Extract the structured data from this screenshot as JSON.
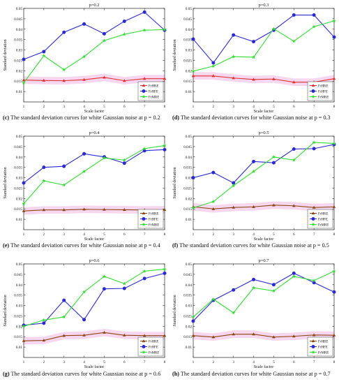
{
  "figure": {
    "panels": [
      {
        "caption_label": "(c)",
        "caption_text": "The standard deviation curves for white Gaussian noise at p = 0.2"
      },
      {
        "caption_label": "(d)",
        "caption_text": "The standard deviation curves for white Gaussian noise at p = 0.3"
      },
      {
        "caption_label": "(e)",
        "caption_text": "The standard deviation curves for white Gaussian noise at p = 0.4"
      },
      {
        "caption_label": "(f)",
        "caption_text": "The standard deviation curves for white Gaussian noise at p = 0.5"
      },
      {
        "caption_label": "(g)",
        "caption_text": "The standard deviation curves for white Gaussian noise at p = 0.6"
      },
      {
        "caption_label": "(h)",
        "caption_text": "The standard deviation curves for white Gaussian noise at p = 0.7"
      }
    ]
  },
  "colors": {
    "frhre": "#e03030",
    "frhfe": "#2a2ad0",
    "frmre": "#33dd33",
    "frhre_alt": "#8b4513",
    "band": "#f7d7ef"
  },
  "chart_data": [
    {
      "type": "line",
      "title": "p=0.2",
      "xlabel": "Scale factor",
      "ylabel": "Standard deviation",
      "x": [
        1,
        2,
        3,
        4,
        5,
        6,
        7,
        8
      ],
      "xlim": [
        1,
        8
      ],
      "ylim": [
        0.005,
        0.05
      ],
      "yticks": [
        "0.01",
        "0.015",
        "0.02",
        "0.025",
        "0.03",
        "0.035",
        "0.04",
        "0.045",
        "0.05"
      ],
      "legend_position": "bottom-right",
      "grid": false,
      "series": [
        {
          "name": "FrHRE",
          "color_key": "frhre",
          "marker": "triangle",
          "values": [
            0.0155,
            0.0153,
            0.0152,
            0.0157,
            0.0168,
            0.0152,
            0.0162,
            0.0162
          ]
        },
        {
          "name": "FrHFE",
          "color_key": "frhfe",
          "marker": "circle",
          "values": [
            0.0255,
            0.0292,
            0.0385,
            0.0425,
            0.0378,
            0.0438,
            0.0482,
            0.0395
          ]
        },
        {
          "name": "FrMRE",
          "color_key": "frmre",
          "marker": "star",
          "values": [
            0.0142,
            0.0272,
            0.0205,
            0.0268,
            0.0345,
            0.0375,
            0.0395,
            0.0398
          ]
        }
      ]
    },
    {
      "type": "line",
      "title": "p=0.3",
      "xlabel": "Scale factor",
      "ylabel": "Standard deviation",
      "x": [
        1,
        2,
        3,
        4,
        5,
        6,
        7,
        8
      ],
      "xlim": [
        1,
        8
      ],
      "ylim": [
        0.005,
        0.05
      ],
      "yticks": [
        "0.01",
        "0.015",
        "0.02",
        "0.025",
        "0.03",
        "0.035",
        "0.04",
        "0.045",
        "0.05"
      ],
      "legend_position": "bottom-right",
      "grid": false,
      "series": [
        {
          "name": "FrHRE",
          "color_key": "frhre",
          "marker": "triangle",
          "values": [
            0.0175,
            0.0175,
            0.0165,
            0.0158,
            0.016,
            0.0145,
            0.0145,
            0.0162
          ]
        },
        {
          "name": "FrHFE",
          "color_key": "frhfe",
          "marker": "circle",
          "values": [
            0.0352,
            0.0238,
            0.0372,
            0.034,
            0.0395,
            0.0468,
            0.0468,
            0.0362
          ]
        },
        {
          "name": "FrMRE",
          "color_key": "frmre",
          "marker": "star",
          "values": [
            0.0198,
            0.0222,
            0.0268,
            0.0265,
            0.0402,
            0.0342,
            0.0412,
            0.044
          ]
        }
      ]
    },
    {
      "type": "line",
      "title": "p=0.4",
      "xlabel": "Scale factor",
      "ylabel": "Standard deviation",
      "x": [
        1,
        2,
        3,
        4,
        5,
        6,
        7,
        8
      ],
      "xlim": [
        1,
        8
      ],
      "ylim": [
        0.005,
        0.05
      ],
      "yticks": [
        "0.01",
        "0.015",
        "0.02",
        "0.025",
        "0.03",
        "0.035",
        "0.04",
        "0.045",
        "0.05"
      ],
      "legend_position": "bottom-right",
      "grid": false,
      "series": [
        {
          "name": "FrHRE",
          "color_key": "frhre_alt",
          "marker": "triangle",
          "values": [
            0.014,
            0.0145,
            0.0145,
            0.0148,
            0.0147,
            0.0146,
            0.0145,
            0.0146
          ]
        },
        {
          "name": "FrHFE",
          "color_key": "frhfe",
          "marker": "circle",
          "values": [
            0.0275,
            0.035,
            0.0355,
            0.0415,
            0.04,
            0.037,
            0.043,
            0.0435
          ]
        },
        {
          "name": "FrMRE",
          "color_key": "frmre",
          "marker": "star",
          "values": [
            0.0175,
            0.0285,
            0.0265,
            0.033,
            0.0395,
            0.0385,
            0.044,
            0.0455
          ]
        }
      ]
    },
    {
      "type": "line",
      "title": "p=0.5",
      "xlabel": "Scale factor",
      "ylabel": "Standard deviation",
      "x": [
        1,
        2,
        3,
        4,
        5,
        6,
        7,
        8
      ],
      "xlim": [
        1,
        8
      ],
      "ylim": [
        0.005,
        0.05
      ],
      "yticks": [
        "0.01",
        "0.015",
        "0.02",
        "0.025",
        "0.03",
        "0.035",
        "0.04",
        "0.045",
        "0.05"
      ],
      "legend_position": "bottom-right",
      "grid": false,
      "series": [
        {
          "name": "FrHRE",
          "color_key": "frhre_alt",
          "marker": "triangle",
          "values": [
            0.016,
            0.015,
            0.0157,
            0.016,
            0.0168,
            0.0165,
            0.0157,
            0.016
          ]
        },
        {
          "name": "FrHFE",
          "color_key": "frhfe",
          "marker": "circle",
          "values": [
            0.03,
            0.0325,
            0.0275,
            0.0378,
            0.0372,
            0.0438,
            0.044,
            0.046
          ]
        },
        {
          "name": "FrMRE",
          "color_key": "frmre",
          "marker": "star",
          "values": [
            0.0155,
            0.0185,
            0.0262,
            0.033,
            0.04,
            0.0385,
            0.047,
            0.0465
          ]
        }
      ]
    },
    {
      "type": "line",
      "title": "p=0.6",
      "xlabel": "Scale factor",
      "ylabel": "Standard deviation",
      "x": [
        1,
        2,
        3,
        4,
        5,
        6,
        7,
        8
      ],
      "xlim": [
        1,
        8
      ],
      "ylim": [
        0.005,
        0.05
      ],
      "yticks": [
        "0.01",
        "0.015",
        "0.02",
        "0.025",
        "0.03",
        "0.035",
        "0.04",
        "0.045",
        "0.05"
      ],
      "legend_position": "bottom-right",
      "grid": false,
      "series": [
        {
          "name": "FrHRE",
          "color_key": "frhre_alt",
          "marker": "triangle",
          "values": [
            0.013,
            0.0132,
            0.0155,
            0.0157,
            0.017,
            0.0157,
            0.0155,
            0.0155
          ]
        },
        {
          "name": "FrHFE",
          "color_key": "frhfe",
          "marker": "circle",
          "values": [
            0.0205,
            0.0215,
            0.0325,
            0.0232,
            0.038,
            0.0382,
            0.043,
            0.0455
          ]
        },
        {
          "name": "FrMRE",
          "color_key": "frmre",
          "marker": "star",
          "values": [
            0.02,
            0.023,
            0.0245,
            0.0365,
            0.044,
            0.0405,
            0.0465,
            0.0475
          ]
        }
      ]
    },
    {
      "type": "line",
      "title": "p=0.7",
      "xlabel": "Scale factor",
      "ylabel": "Standard deviation",
      "x": [
        1,
        2,
        3,
        4,
        5,
        6,
        7,
        8
      ],
      "xlim": [
        1,
        8
      ],
      "ylim": [
        0.005,
        0.05
      ],
      "yticks": [
        "0.01",
        "0.015",
        "0.02",
        "0.025",
        "0.03",
        "0.035",
        "0.04",
        "0.045",
        "0.05"
      ],
      "legend_position": "bottom-right",
      "grid": false,
      "series": [
        {
          "name": "FrHRE",
          "color_key": "frhre_alt",
          "marker": "triangle",
          "values": [
            0.0155,
            0.0148,
            0.0162,
            0.0162,
            0.0148,
            0.0152,
            0.0158,
            0.0157
          ]
        },
        {
          "name": "FrHFE",
          "color_key": "frhfe",
          "marker": "circle",
          "values": [
            0.0225,
            0.0325,
            0.0375,
            0.0425,
            0.04,
            0.0455,
            0.041,
            0.0365
          ]
        },
        {
          "name": "FrMRE",
          "color_key": "frmre",
          "marker": "star",
          "values": [
            0.0245,
            0.033,
            0.0265,
            0.0385,
            0.037,
            0.044,
            0.042,
            0.0465
          ]
        }
      ]
    }
  ]
}
